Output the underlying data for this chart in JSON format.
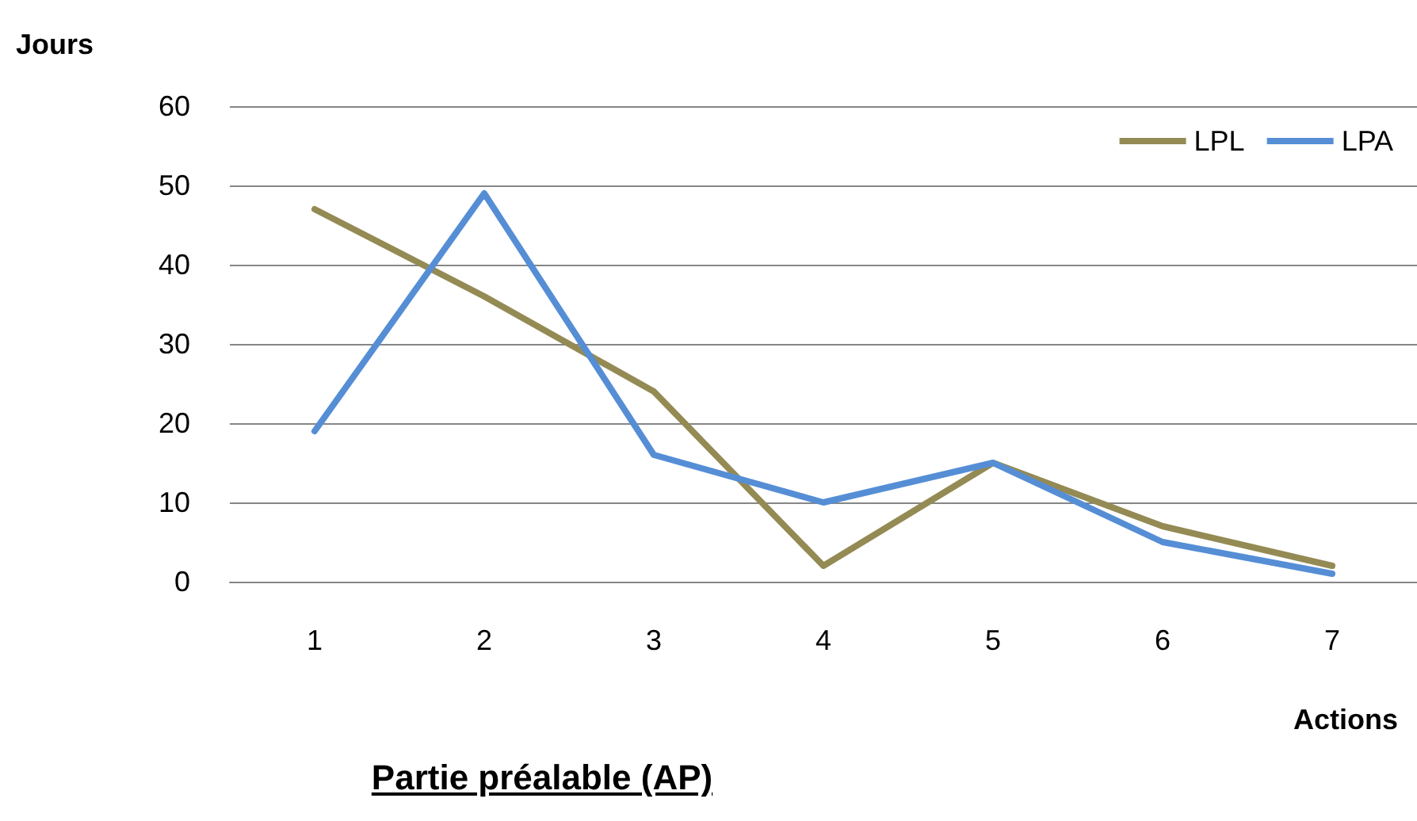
{
  "chart_data": {
    "type": "line",
    "title": "Partie préalable (AP)",
    "xlabel": "Actions",
    "ylabel": "Jours",
    "categories": [
      "1",
      "2",
      "3",
      "4",
      "5",
      "6",
      "7"
    ],
    "series": [
      {
        "name": "LPL",
        "color": "#948a54",
        "values": [
          47,
          36,
          24,
          2,
          15,
          7,
          2
        ]
      },
      {
        "name": "LPA",
        "color": "#558ed5",
        "values": [
          19,
          49,
          16,
          10,
          15,
          5,
          1
        ]
      }
    ],
    "ylim": [
      0,
      60
    ],
    "yticks": [
      0,
      10,
      20,
      30,
      40,
      50,
      60
    ],
    "grid": "y",
    "legend": "top right",
    "marker": "none",
    "line_style": "solid"
  }
}
